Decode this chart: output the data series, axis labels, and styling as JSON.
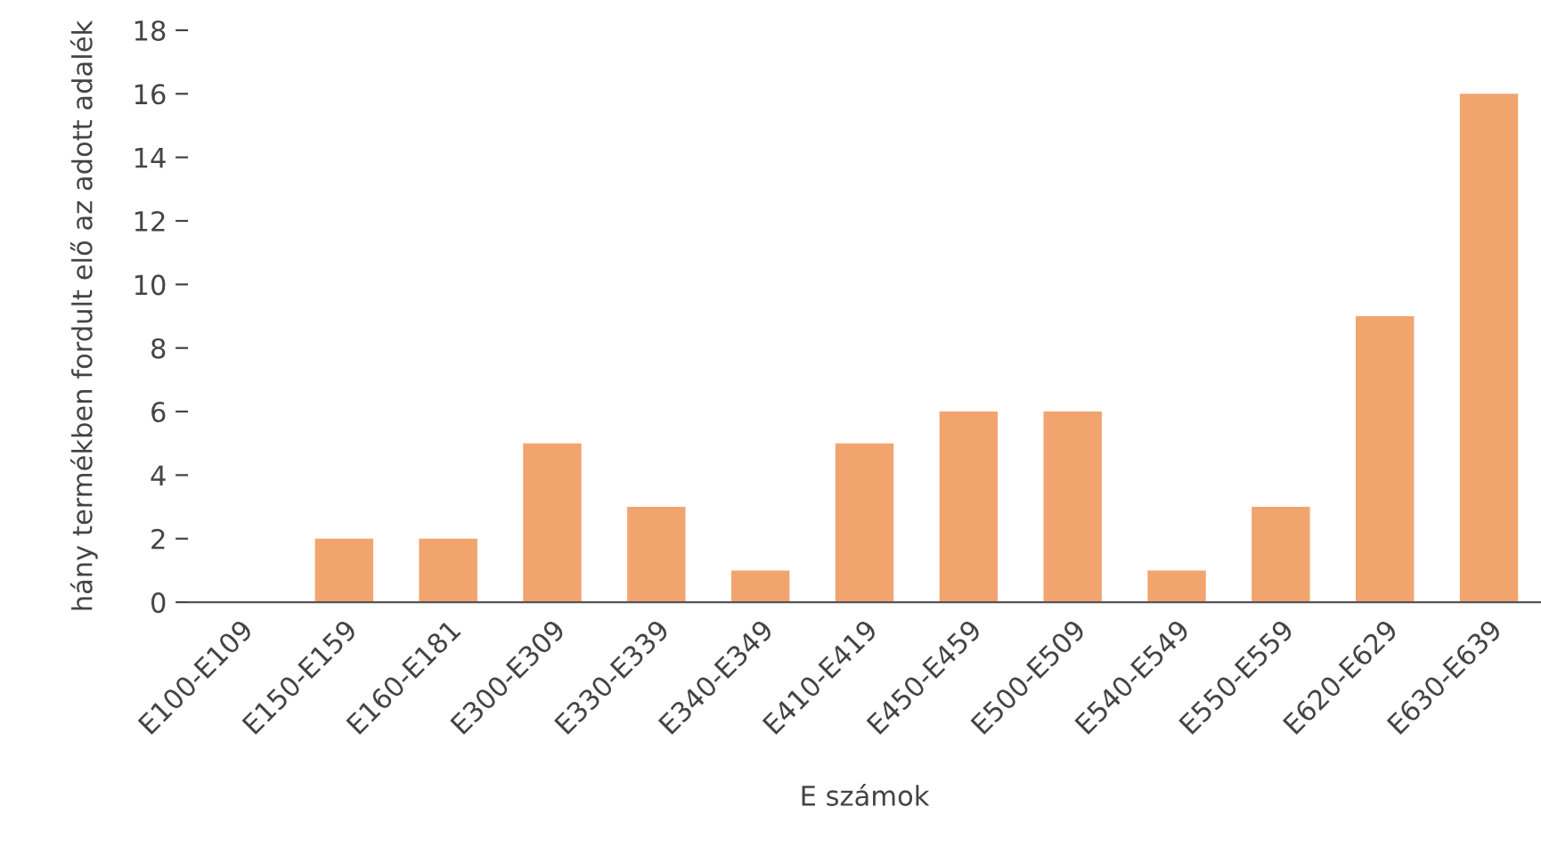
{
  "chart_data": {
    "type": "bar",
    "xlabel": "E számok",
    "ylabel": "hány termékben fordult elő az adott adalék",
    "categories": [
      "E100-E109",
      "E150-E159",
      "E160-E181",
      "E300-E309",
      "E330-E339",
      "E340-E349",
      "E410-E419",
      "E450-E459",
      "E500-E509",
      "E540-E549",
      "E550-E559",
      "E620-E629",
      "E630-E639"
    ],
    "values": [
      0,
      2,
      2,
      5,
      3,
      1,
      5,
      6,
      6,
      1,
      3,
      9,
      16
    ],
    "color": "#f2a46f",
    "ylim": [
      0,
      18
    ],
    "yticks": [
      0,
      2,
      4,
      6,
      8,
      10,
      12,
      14,
      16,
      18
    ],
    "grid": false
  }
}
